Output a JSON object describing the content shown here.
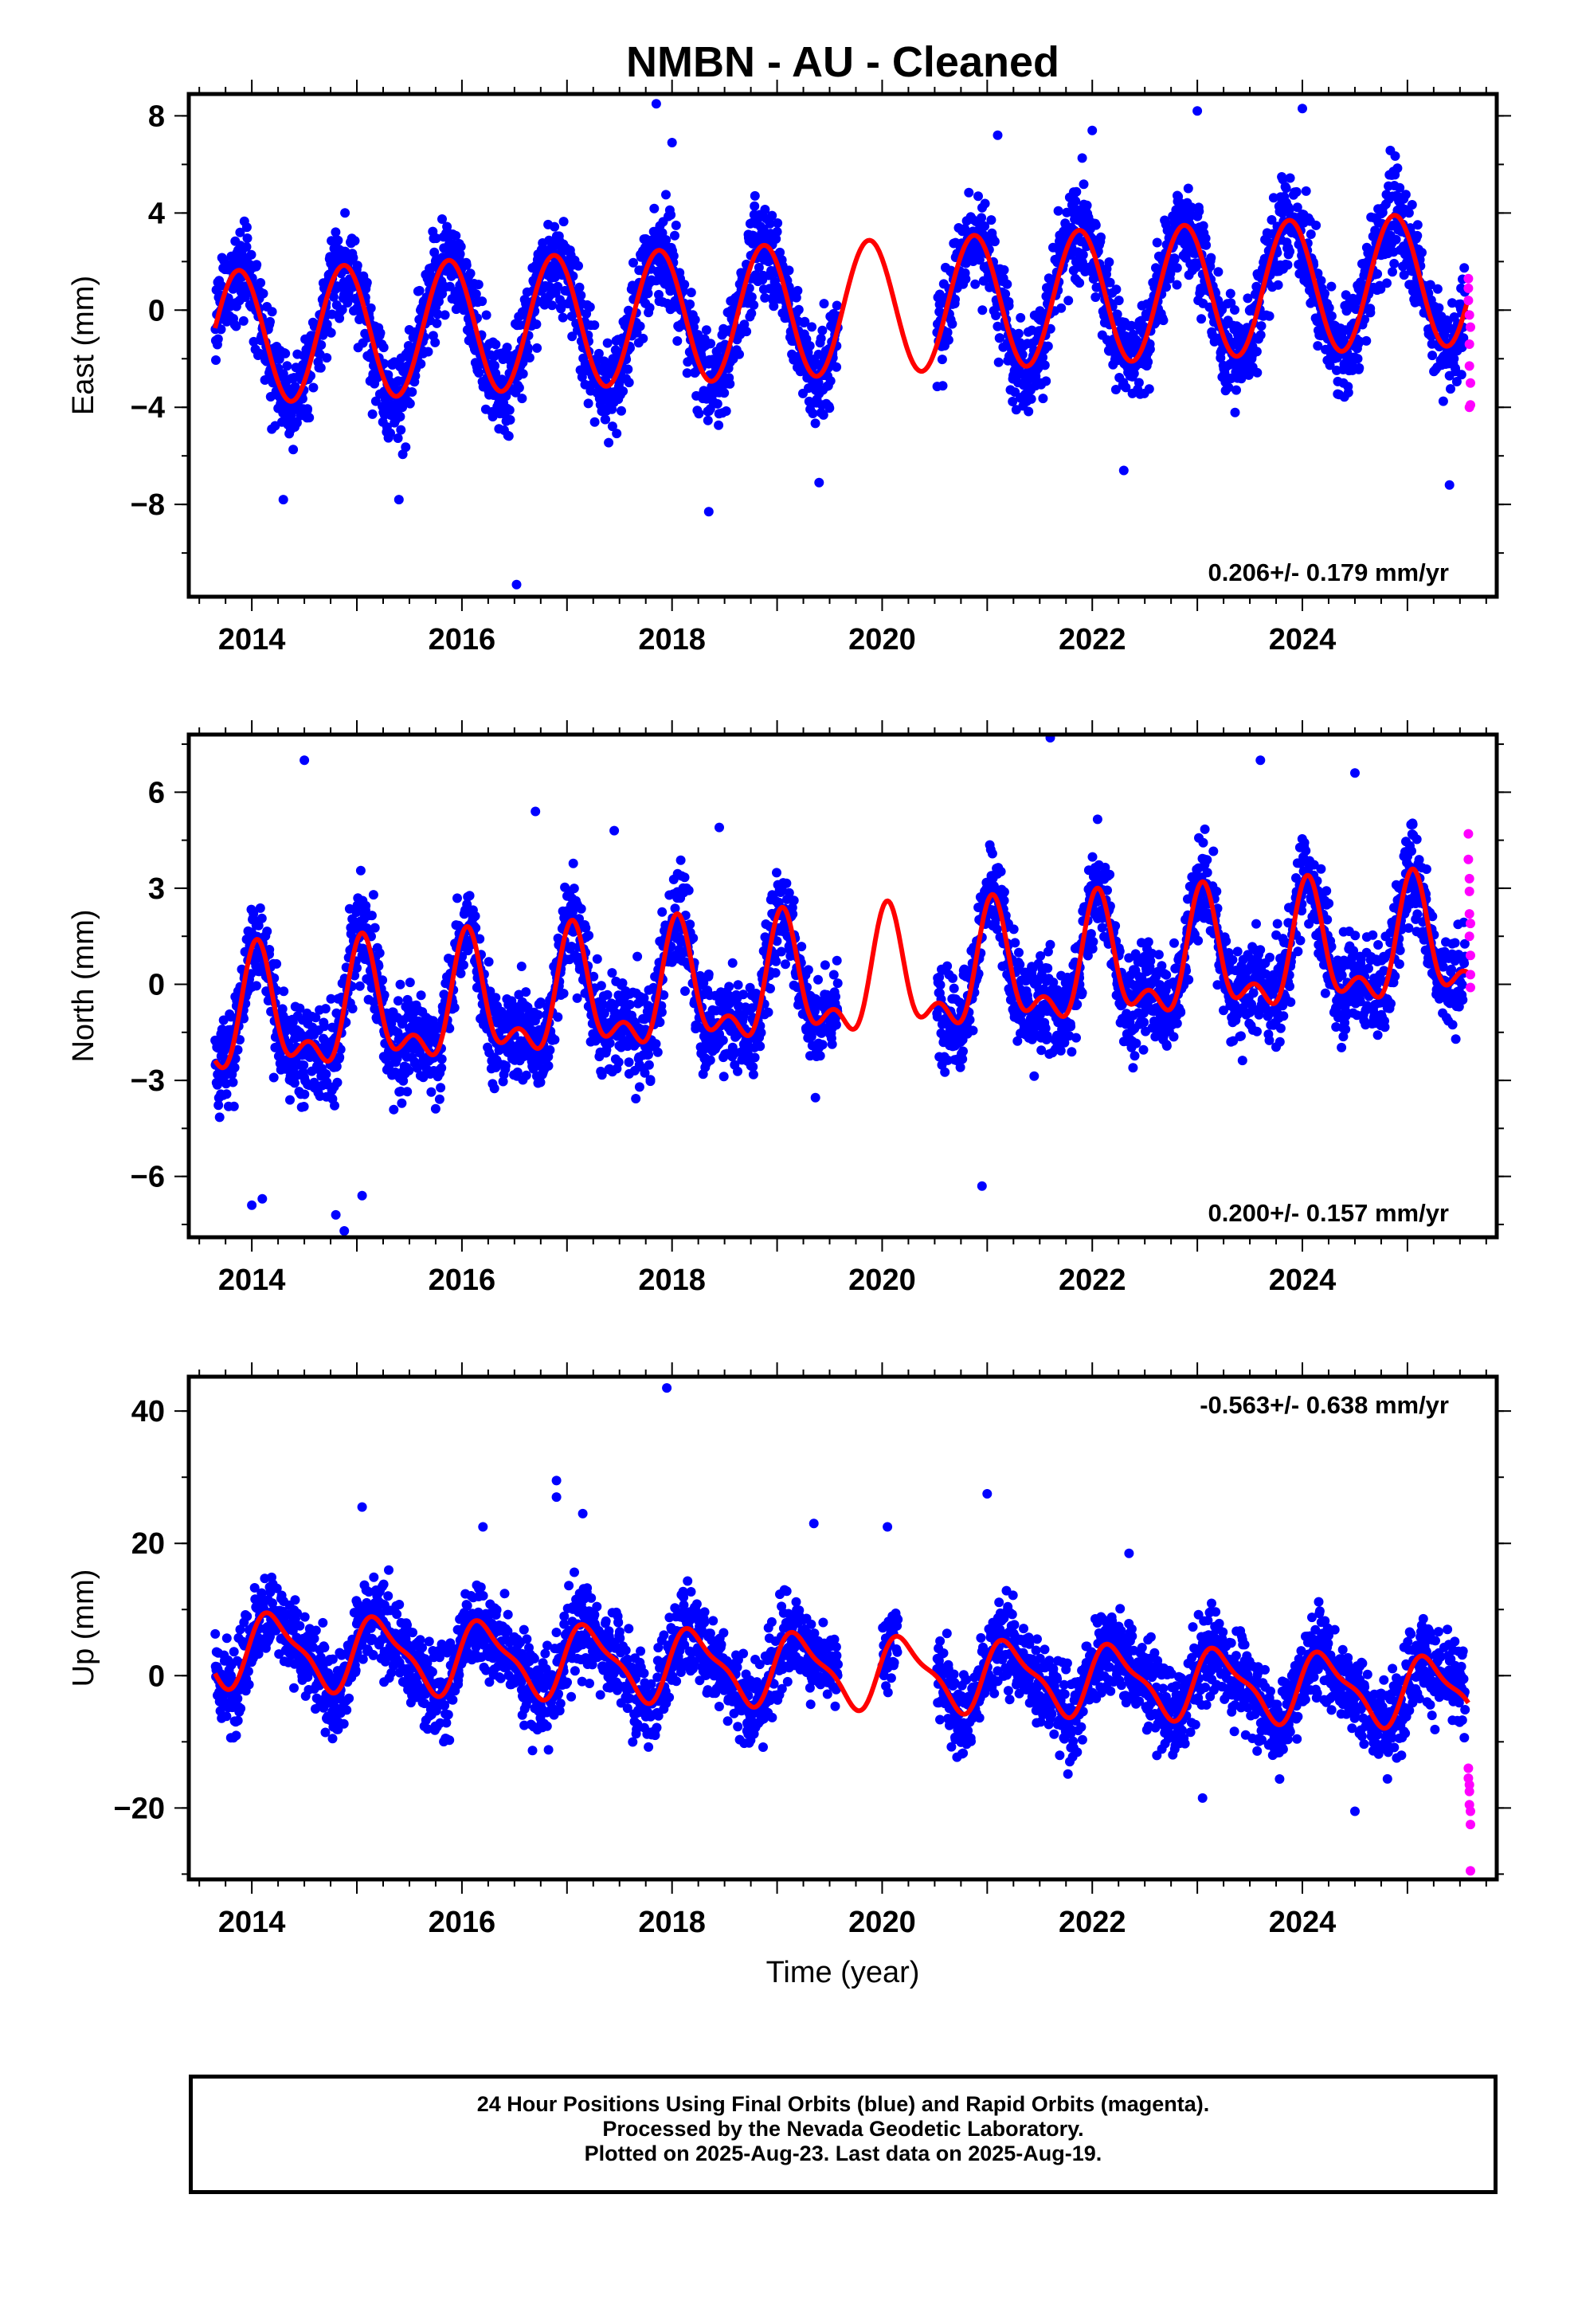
{
  "title": "NMBN  - AU - Cleaned",
  "xlabel": "Time (year)",
  "colors": {
    "final": "#0000ff",
    "rapid": "#ff00ff",
    "model": "#ff0000",
    "frame": "#000000"
  },
  "footer": {
    "line1": "24 Hour Positions Using Final Orbits (blue) and Rapid Orbits (magenta).",
    "line2": "Processed by the Nevada Geodetic Laboratory.",
    "line3": "Plotted on 2025-Aug-23. Last data on 2025-Aug-19."
  },
  "chart_data": [
    {
      "type": "scatter",
      "component": "east",
      "ylabel": "East (mm)",
      "rate_label": "0.206+/- 0.179 mm/yr",
      "rate_position": "bottom-right",
      "xlim": [
        2013.4,
        2025.85
      ],
      "ylim": [
        -11.8,
        8.9
      ],
      "yticks": [
        -8,
        -4,
        0,
        4,
        8
      ],
      "xticks": [
        2014,
        2016,
        2018,
        2020,
        2022,
        2024
      ],
      "series": [
        {
          "kind": "model",
          "legend_shown": false,
          "x_start": 2013.65,
          "x_end": 2025.58,
          "model": {
            "epoch": 2019.5,
            "offset": 0.05,
            "slope": 0.206,
            "annual": [
              {
                "from": 2013.65,
                "to": 2025.58,
                "amp_start": 2.75,
                "amp_end": 2.75,
                "phase": 2.35
              }
            ],
            "semiannual": [
              {
                "amp": 0.0,
                "phase": 0.0
              }
            ]
          }
        },
        {
          "kind": "final",
          "legend_shown": false,
          "segments": [
            [
              2013.65,
              2019.58
            ],
            [
              2020.52,
              2025.55
            ]
          ],
          "density_per_year": 290,
          "scatter_mm": 1.35,
          "outliers": [
            [
              2016.52,
              -11.3
            ],
            [
              2017.85,
              8.5
            ],
            [
              2018.35,
              -8.3
            ],
            [
              2014.3,
              -7.8
            ],
            [
              2015.4,
              -7.8
            ],
            [
              2019.4,
              -7.1
            ],
            [
              2022.3,
              -6.6
            ],
            [
              2025.4,
              -7.2
            ],
            [
              2023.0,
              8.2
            ],
            [
              2024.0,
              8.3
            ],
            [
              2021.1,
              7.2
            ],
            [
              2018.0,
              6.9
            ],
            [
              2022.0,
              7.4
            ]
          ]
        },
        {
          "kind": "rapid",
          "legend_shown": false,
          "points": [
            [
              2025.58,
              1.3
            ],
            [
              2025.58,
              0.9
            ],
            [
              2025.58,
              0.4
            ],
            [
              2025.59,
              -0.2
            ],
            [
              2025.59,
              -1.4
            ],
            [
              2025.59,
              -2.3
            ],
            [
              2025.6,
              -3.0
            ],
            [
              2025.6,
              -3.9
            ],
            [
              2025.59,
              -4.0
            ],
            [
              2025.6,
              -0.7
            ]
          ]
        }
      ]
    },
    {
      "type": "scatter",
      "component": "north",
      "ylabel": "North (mm)",
      "rate_label": "0.200+/- 0.157 mm/yr",
      "rate_position": "bottom-right",
      "xlim": [
        2013.4,
        2025.85
      ],
      "ylim": [
        -7.9,
        7.8
      ],
      "yticks": [
        -6,
        -3,
        0,
        3,
        6
      ],
      "xticks": [
        2014,
        2016,
        2018,
        2020,
        2022,
        2024
      ],
      "series": [
        {
          "kind": "model",
          "legend_shown": false,
          "x_start": 2013.65,
          "x_end": 2025.58,
          "model": {
            "epoch": 2019.5,
            "offset": -0.05,
            "slope": 0.2,
            "annual": [
              {
                "from": 2013.65,
                "to": 2025.58,
                "amp_start": 1.65,
                "amp_end": 1.65,
                "phase": 1.2
              }
            ],
            "semiannual": [
              {
                "amp": 0.9,
                "phase": 1.0
              }
            ]
          }
        },
        {
          "kind": "final",
          "legend_shown": false,
          "segments": [
            [
              2013.65,
              2019.58
            ],
            [
              2020.52,
              2025.55
            ]
          ],
          "density_per_year": 290,
          "scatter_mm": 1.05,
          "outliers": [
            [
              2014.5,
              7.0
            ],
            [
              2021.6,
              7.7
            ],
            [
              2014.88,
              -7.7
            ],
            [
              2014.8,
              -7.2
            ],
            [
              2014.0,
              -6.9
            ],
            [
              2020.95,
              -6.3
            ],
            [
              2023.6,
              7.0
            ],
            [
              2016.7,
              5.4
            ],
            [
              2024.5,
              6.6
            ],
            [
              2017.45,
              4.8
            ],
            [
              2018.45,
              4.9
            ],
            [
              2014.1,
              -6.7
            ],
            [
              2015.05,
              -6.6
            ]
          ]
        },
        {
          "kind": "rapid",
          "legend_shown": false,
          "points": [
            [
              2025.58,
              4.7
            ],
            [
              2025.58,
              3.9
            ],
            [
              2025.59,
              2.9
            ],
            [
              2025.59,
              2.2
            ],
            [
              2025.59,
              1.5
            ],
            [
              2025.6,
              0.9
            ],
            [
              2025.6,
              0.3
            ],
            [
              2025.6,
              -0.1
            ],
            [
              2025.59,
              3.3
            ],
            [
              2025.6,
              1.9
            ]
          ]
        }
      ]
    },
    {
      "type": "scatter",
      "component": "up",
      "ylabel": "Up (mm)",
      "rate_label": "-0.563+/- 0.638 mm/yr",
      "rate_position": "top-right",
      "xlim": [
        2013.4,
        2025.85
      ],
      "ylim": [
        -30.8,
        45.2
      ],
      "yticks": [
        -20,
        0,
        20,
        40
      ],
      "xticks": [
        2014,
        2016,
        2018,
        2020,
        2022,
        2024
      ],
      "series": [
        {
          "kind": "model",
          "legend_shown": false,
          "x_start": 2013.65,
          "x_end": 2025.58,
          "model": {
            "epoch": 2019.5,
            "offset": 0.8,
            "slope": -0.563,
            "annual": [
              {
                "from": 2013.65,
                "to": 2025.58,
                "amp_start": 5.2,
                "amp_end": 4.8,
                "phase": 0.2
              }
            ],
            "semiannual": [
              {
                "amp": 1.6,
                "phase": 0.6
              }
            ]
          }
        },
        {
          "kind": "final",
          "legend_shown": false,
          "segments": [
            [
              2013.65,
              2019.58
            ],
            [
              2020.0,
              2020.15
            ],
            [
              2020.52,
              2025.55
            ]
          ],
          "density_per_year": 290,
          "scatter_mm": 4.6,
          "outliers": [
            [
              2017.95,
              43.5
            ],
            [
              2016.9,
              29.5
            ],
            [
              2015.05,
              25.5
            ],
            [
              2021.0,
              27.5
            ],
            [
              2020.05,
              22.5
            ],
            [
              2016.2,
              22.5
            ],
            [
              2019.35,
              23.0
            ],
            [
              2023.05,
              -18.5
            ],
            [
              2024.5,
              -20.5
            ],
            [
              2022.35,
              18.5
            ],
            [
              2017.15,
              24.5
            ],
            [
              2016.9,
              27.0
            ]
          ]
        },
        {
          "kind": "rapid",
          "legend_shown": false,
          "points": [
            [
              2025.58,
              -14.0
            ],
            [
              2025.58,
              -15.5
            ],
            [
              2025.59,
              -17.5
            ],
            [
              2025.59,
              -19.5
            ],
            [
              2025.6,
              -22.5
            ],
            [
              2025.6,
              -29.5
            ],
            [
              2025.59,
              -16.5
            ],
            [
              2025.6,
              -20.5
            ]
          ]
        }
      ]
    }
  ]
}
